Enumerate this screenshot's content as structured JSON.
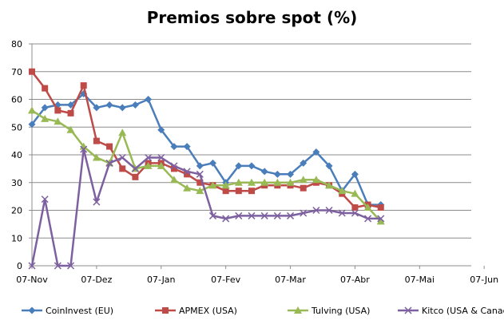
{
  "chart_data": {
    "type": "line",
    "title": "Premios sobre spot (%)",
    "xlabel": "",
    "ylabel": "",
    "x_ticks": [
      "07-Nov",
      "07-Dez",
      "07-Jan",
      "07-Fev",
      "07-Mar",
      "07-Abr",
      "07-Mai",
      "07-Jun"
    ],
    "ylim": [
      0,
      80
    ],
    "y_ticks": [
      0,
      10,
      20,
      30,
      40,
      50,
      60,
      70,
      80
    ],
    "grid": "horizontal",
    "legend_position": "bottom",
    "series": [
      {
        "name": "CoinInvest (EU)",
        "color": "#4a7ebb",
        "marker": "diamond",
        "points": [
          [
            0,
            51
          ],
          [
            1,
            57
          ],
          [
            2,
            58
          ],
          [
            3,
            58
          ],
          [
            4,
            62
          ],
          [
            5,
            57
          ],
          [
            6,
            58
          ],
          [
            7,
            57
          ],
          [
            8,
            58
          ],
          [
            9,
            60
          ],
          [
            10,
            49
          ],
          [
            11,
            43
          ],
          [
            12,
            43
          ],
          [
            13,
            36
          ],
          [
            14,
            37
          ],
          [
            15,
            30
          ],
          [
            16,
            36
          ],
          [
            17,
            36
          ],
          [
            18,
            34
          ],
          [
            19,
            33
          ],
          [
            20,
            33
          ],
          [
            21,
            37
          ],
          [
            22,
            41
          ],
          [
            23,
            36
          ],
          [
            24,
            27
          ],
          [
            25,
            33
          ],
          [
            26,
            22
          ],
          [
            27,
            22
          ]
        ]
      },
      {
        "name": "APMEX (USA)",
        "color": "#be4b48",
        "marker": "square",
        "points": [
          [
            0,
            70
          ],
          [
            1,
            64
          ],
          [
            2,
            56
          ],
          [
            3,
            55
          ],
          [
            4,
            65
          ],
          [
            5,
            45
          ],
          [
            6,
            43
          ],
          [
            7,
            35
          ],
          [
            8,
            32
          ],
          [
            9,
            37
          ],
          [
            10,
            37
          ],
          [
            11,
            35
          ],
          [
            12,
            33
          ],
          [
            13,
            30
          ],
          [
            14,
            29
          ],
          [
            15,
            27
          ],
          [
            16,
            27
          ],
          [
            17,
            27
          ],
          [
            18,
            29
          ],
          [
            19,
            29
          ],
          [
            20,
            29
          ],
          [
            21,
            28
          ],
          [
            22,
            30
          ],
          [
            23,
            29
          ],
          [
            24,
            26
          ],
          [
            25,
            21
          ],
          [
            26,
            22
          ],
          [
            27,
            21
          ]
        ]
      },
      {
        "name": "Tulving (USA)",
        "color": "#98b954",
        "marker": "triangle",
        "points": [
          [
            0,
            56
          ],
          [
            1,
            53
          ],
          [
            2,
            52
          ],
          [
            3,
            49
          ],
          [
            4,
            43
          ],
          [
            5,
            39
          ],
          [
            6,
            37
          ],
          [
            7,
            48
          ],
          [
            8,
            35
          ],
          [
            9,
            36
          ],
          [
            10,
            36
          ],
          [
            11,
            31
          ],
          [
            12,
            28
          ],
          [
            13,
            27
          ],
          [
            14,
            29
          ],
          [
            15,
            29
          ],
          [
            16,
            30
          ],
          [
            17,
            30
          ],
          [
            18,
            30
          ],
          [
            19,
            30
          ],
          [
            20,
            30
          ],
          [
            21,
            31
          ],
          [
            22,
            31
          ],
          [
            23,
            29
          ],
          [
            24,
            27
          ],
          [
            25,
            26
          ],
          [
            26,
            21
          ],
          [
            27,
            16
          ]
        ]
      },
      {
        "name": "Kitco (USA & Canada)",
        "color": "#7d60a0",
        "marker": "x",
        "points": [
          [
            0,
            0
          ],
          [
            1,
            24
          ],
          [
            2,
            0
          ],
          [
            3,
            0
          ],
          [
            4,
            42
          ],
          [
            5,
            23
          ],
          [
            6,
            37
          ],
          [
            7,
            39
          ],
          [
            8,
            35
          ],
          [
            9,
            39
          ],
          [
            10,
            39
          ],
          [
            11,
            36
          ],
          [
            12,
            34
          ],
          [
            13,
            33
          ],
          [
            14,
            18
          ],
          [
            15,
            17
          ],
          [
            16,
            18
          ],
          [
            17,
            18
          ],
          [
            18,
            18
          ],
          [
            19,
            18
          ],
          [
            20,
            18
          ],
          [
            21,
            19
          ],
          [
            22,
            20
          ],
          [
            23,
            20
          ],
          [
            24,
            19
          ],
          [
            25,
            19
          ],
          [
            26,
            17
          ],
          [
            27,
            17
          ]
        ]
      }
    ]
  }
}
